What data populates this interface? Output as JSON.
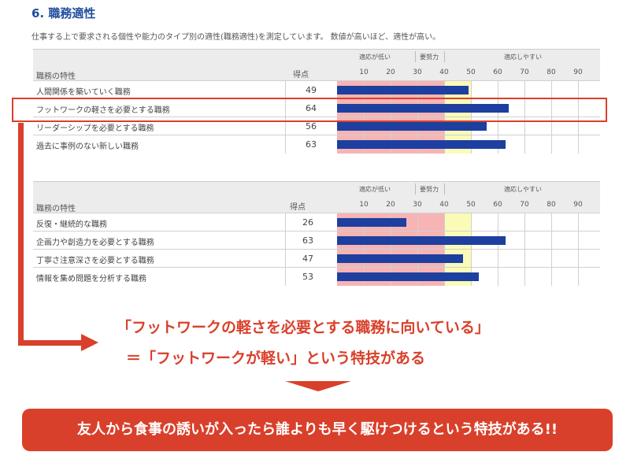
{
  "section": {
    "title": "6. 職務適性",
    "description": "仕事する上で要求される個性や能力のタイプ別の適性(職務適性)を測定しています。 数値が高いほど、適性が高い。"
  },
  "table_header": {
    "label_col": "職務の特性",
    "score_col": "得点",
    "zone_low": "適応が低い",
    "zone_mid": "要努力",
    "zone_high": "適応しやすい",
    "ticks": [
      "10",
      "20",
      "30",
      "40",
      "50",
      "60",
      "70",
      "80",
      "90"
    ]
  },
  "chart_data": [
    {
      "type": "bar",
      "categories": [
        "人間関係を築いていく職務",
        "フットワークの軽さを必要とする職務",
        "リーダーシップを必要とする職務",
        "過去に事例のない新しい職務"
      ],
      "values": [
        49,
        64,
        56,
        63
      ],
      "xlim": [
        0,
        100
      ],
      "highlighted": "フットワークの軽さを必要とする職務"
    },
    {
      "type": "bar",
      "categories": [
        "反復・継続的な職務",
        "企画力や創造力を必要とする職務",
        "丁寧さ注意深さを必要とする職務",
        "情報を集め問題を分析する職務"
      ],
      "values": [
        26,
        63,
        47,
        53
      ],
      "xlim": [
        0,
        100
      ]
    }
  ],
  "table1": {
    "rows": [
      {
        "label": "人間関係を築いていく職務",
        "score": "49"
      },
      {
        "label": "フットワークの軽さを必要とする職務",
        "score": "64"
      },
      {
        "label": "リーダーシップを必要とする職務",
        "score": "56"
      },
      {
        "label": "過去に事例のない新しい職務",
        "score": "63"
      }
    ]
  },
  "table2": {
    "rows": [
      {
        "label": "反復・継続的な職務",
        "score": "26"
      },
      {
        "label": "企画力や創造力を必要とする職務",
        "score": "63"
      },
      {
        "label": "丁寧さ注意深さを必要とする職務",
        "score": "47"
      },
      {
        "label": "情報を集め問題を分析する職務",
        "score": "53"
      }
    ]
  },
  "annotation": {
    "quote1": "「フットワークの軽さを必要とする職務に向いている」",
    "quote2": "＝「フットワークが軽い」という特技がある",
    "banner": "友人から食事の誘いが入ったら誰よりも早く駆けつけるという特技がある!!"
  },
  "colors": {
    "accent_red": "#d9402b",
    "title_blue": "#1f4e9c",
    "bar_blue": "#1d3fa0",
    "zone_low": "#f7b4b4",
    "zone_mid": "#fbfbb8"
  }
}
